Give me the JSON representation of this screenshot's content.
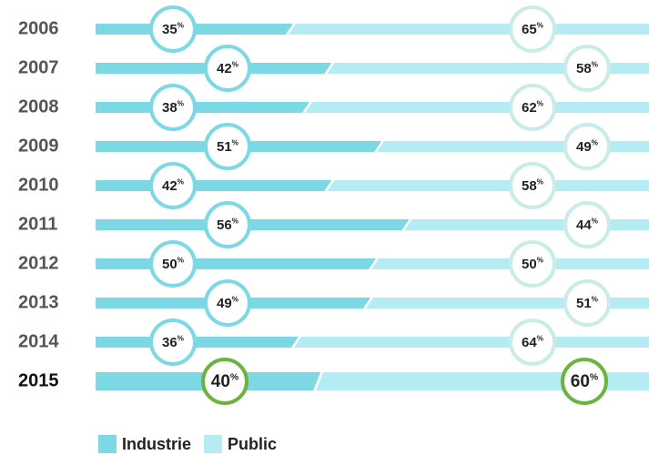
{
  "chart_data": {
    "type": "bar",
    "orientation": "horizontal",
    "stacked": true,
    "categories": [
      "2006",
      "2007",
      "2008",
      "2009",
      "2010",
      "2011",
      "2012",
      "2013",
      "2014",
      "2015"
    ],
    "xlim": [
      0,
      100
    ],
    "series": [
      {
        "name": "Industrie",
        "color": "#7dd8e6",
        "values": [
          35,
          42,
          38,
          51,
          42,
          56,
          50,
          49,
          36,
          40
        ],
        "value_labels": [
          "35%",
          "42%",
          "38%",
          "51%",
          "42%",
          "56%",
          "50%",
          "49%",
          "36%",
          "40%"
        ]
      },
      {
        "name": "Public",
        "color": "#b5ecf3",
        "values": [
          65,
          58,
          62,
          49,
          58,
          44,
          50,
          51,
          64,
          60
        ],
        "value_labels": [
          "65%",
          "58%",
          "62%",
          "49%",
          "58%",
          "44%",
          "50%",
          "51%",
          "64%",
          "60%"
        ]
      }
    ]
  }
}
